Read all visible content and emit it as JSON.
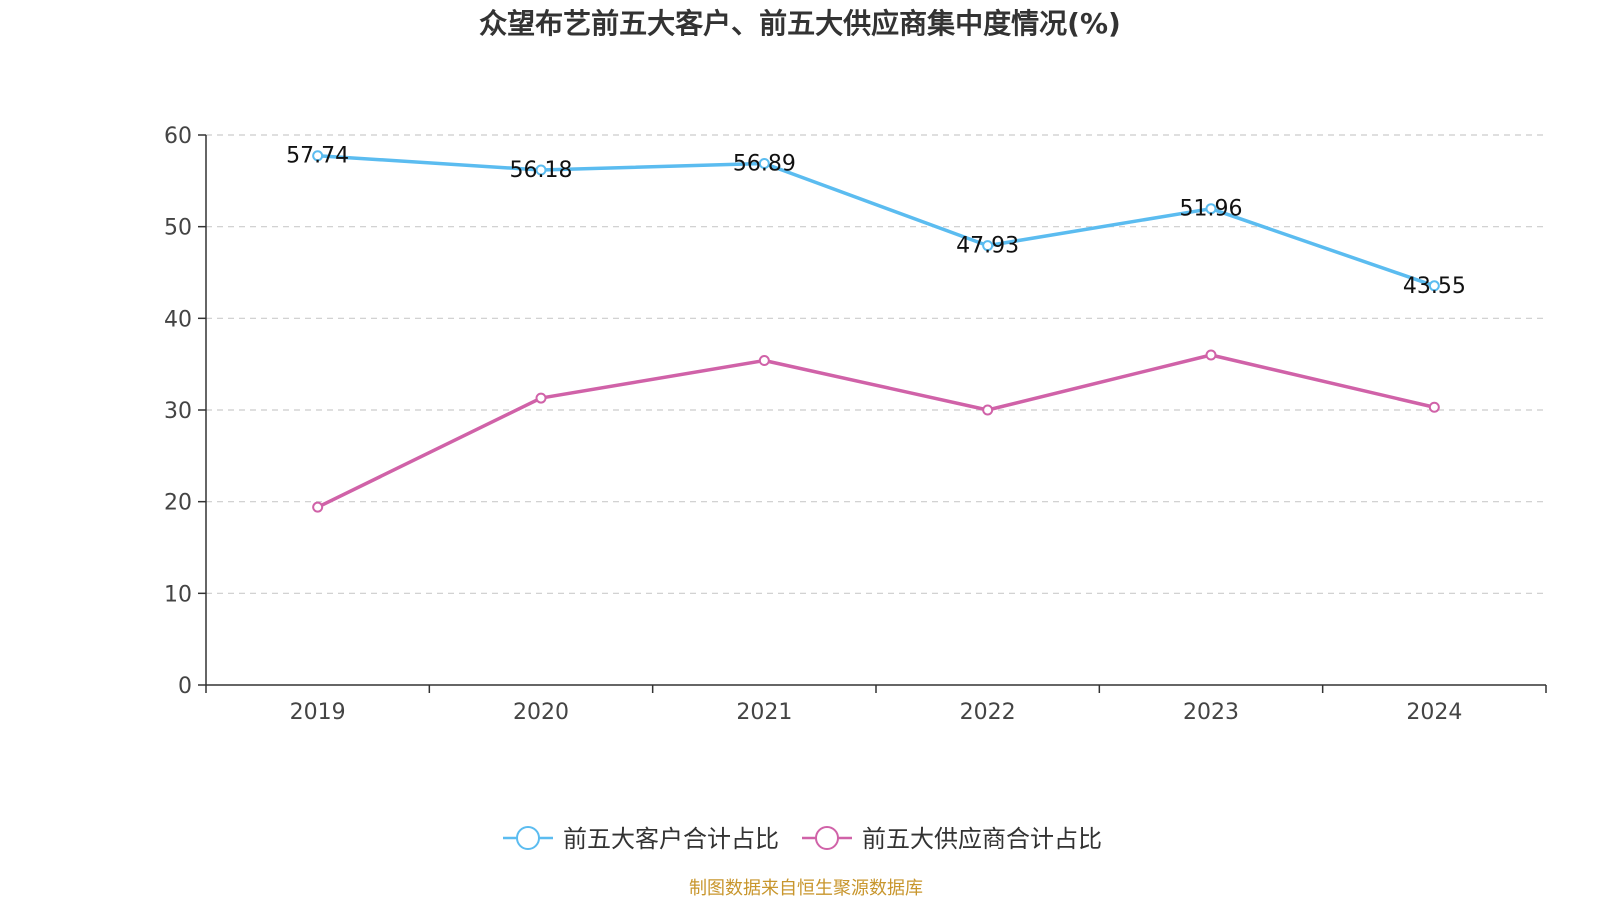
{
  "chart_data": {
    "type": "line",
    "title": "众望布艺前五大客户、前五大供应商集中度情况(%)",
    "categories": [
      "2019",
      "2020",
      "2021",
      "2022",
      "2023",
      "2024"
    ],
    "ylim": [
      0,
      60
    ],
    "yticks": [
      "0",
      "10",
      "20",
      "30",
      "40",
      "50",
      "60"
    ],
    "grid": true,
    "legend_position": "bottom-center",
    "series": [
      {
        "name": "前五大客户合计占比",
        "color": "#5bbcf0",
        "values": [
          57.74,
          56.18,
          56.89,
          47.93,
          51.96,
          43.55
        ],
        "labels": [
          "57.74",
          "56.18",
          "56.89",
          "47.93",
          "51.96",
          "43.55"
        ],
        "show_labels": true
      },
      {
        "name": "前五大供应商合计占比",
        "color": "#d062a8",
        "values": [
          19.4,
          31.3,
          35.4,
          30.0,
          36.0,
          30.3
        ],
        "show_labels": false
      }
    ]
  },
  "source_text": "制图数据来自恒生聚源数据库"
}
